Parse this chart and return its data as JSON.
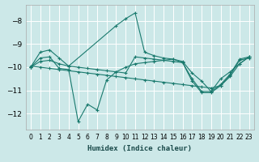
{
  "xlabel": "Humidex (Indice chaleur)",
  "background_color": "#cce8e8",
  "grid_color": "#ffffff",
  "line_color": "#1a7a6e",
  "xlim": [
    -0.5,
    23.5
  ],
  "ylim": [
    -12.7,
    -7.3
  ],
  "yticks": [
    -12,
    -11,
    -10,
    -9,
    -8
  ],
  "xticks": [
    0,
    1,
    2,
    3,
    4,
    5,
    6,
    7,
    8,
    9,
    10,
    11,
    12,
    13,
    14,
    15,
    16,
    17,
    18,
    19,
    20,
    21,
    22,
    23
  ],
  "lines": [
    {
      "x": [
        0,
        1,
        2,
        3,
        4,
        9,
        10,
        11,
        12,
        13,
        14,
        15,
        16,
        17,
        18,
        19,
        20,
        21,
        22,
        23
      ],
      "y": [
        -10.0,
        -9.35,
        -9.25,
        -9.6,
        -9.95,
        -8.2,
        -7.9,
        -7.65,
        -9.35,
        -9.5,
        -9.6,
        -9.65,
        -9.75,
        -10.25,
        -10.6,
        -11.05,
        -10.5,
        -10.2,
        -9.85,
        -9.55
      ]
    },
    {
      "x": [
        0,
        1,
        2,
        3,
        4,
        5,
        6,
        7,
        8,
        9,
        10,
        11,
        12,
        13,
        14,
        15,
        16,
        17,
        18,
        19,
        20,
        21,
        22,
        23
      ],
      "y": [
        -10.0,
        -9.75,
        -9.7,
        -9.85,
        -9.95,
        -10.0,
        -10.05,
        -10.1,
        -10.15,
        -10.2,
        -10.25,
        -9.55,
        -9.6,
        -9.65,
        -9.7,
        -9.75,
        -9.8,
        -10.5,
        -11.05,
        -11.05,
        -10.75,
        -10.3,
        -9.65,
        -9.55
      ]
    },
    {
      "x": [
        0,
        1,
        2,
        3,
        4,
        5,
        6,
        7,
        8,
        9,
        10,
        11,
        12,
        13,
        14,
        15,
        16,
        17,
        18,
        19,
        20,
        21,
        22,
        23
      ],
      "y": [
        -10.0,
        -9.6,
        -9.55,
        -10.05,
        -10.1,
        -12.35,
        -11.6,
        -11.85,
        -10.55,
        -10.2,
        -10.0,
        -9.85,
        -9.8,
        -9.75,
        -9.7,
        -9.65,
        -9.8,
        -10.6,
        -11.1,
        -11.1,
        -10.8,
        -10.35,
        -9.7,
        -9.6
      ]
    },
    {
      "x": [
        0,
        1,
        2,
        3,
        4,
        5,
        6,
        7,
        8,
        9,
        10,
        11,
        12,
        13,
        14,
        15,
        16,
        17,
        18,
        19,
        20,
        21,
        22,
        23
      ],
      "y": [
        -9.95,
        -10.0,
        -10.05,
        -10.1,
        -10.15,
        -10.2,
        -10.25,
        -10.3,
        -10.35,
        -10.4,
        -10.45,
        -10.5,
        -10.55,
        -10.6,
        -10.65,
        -10.7,
        -10.75,
        -10.8,
        -10.85,
        -10.9,
        -10.8,
        -10.4,
        -9.85,
        -9.55
      ]
    }
  ]
}
